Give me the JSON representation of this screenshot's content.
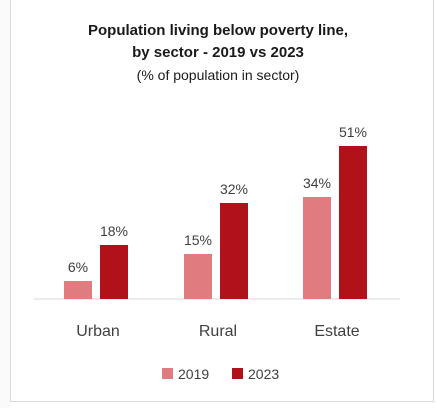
{
  "chart_data": {
    "type": "bar",
    "title": "Population living below poverty line,",
    "title_line2": "by sector - 2019 vs 2023",
    "subtitle": "(% of population in sector)",
    "categories": [
      "Urban",
      "Rural",
      "Estate"
    ],
    "series": [
      {
        "name": "2019",
        "values": [
          6,
          15,
          34
        ],
        "color": "#e07b7f"
      },
      {
        "name": "2023",
        "values": [
          18,
          32,
          51
        ],
        "color": "#b1121a"
      }
    ],
    "ylim": [
      0,
      60
    ],
    "value_format": "%",
    "grid": false,
    "legend": "bottom"
  }
}
